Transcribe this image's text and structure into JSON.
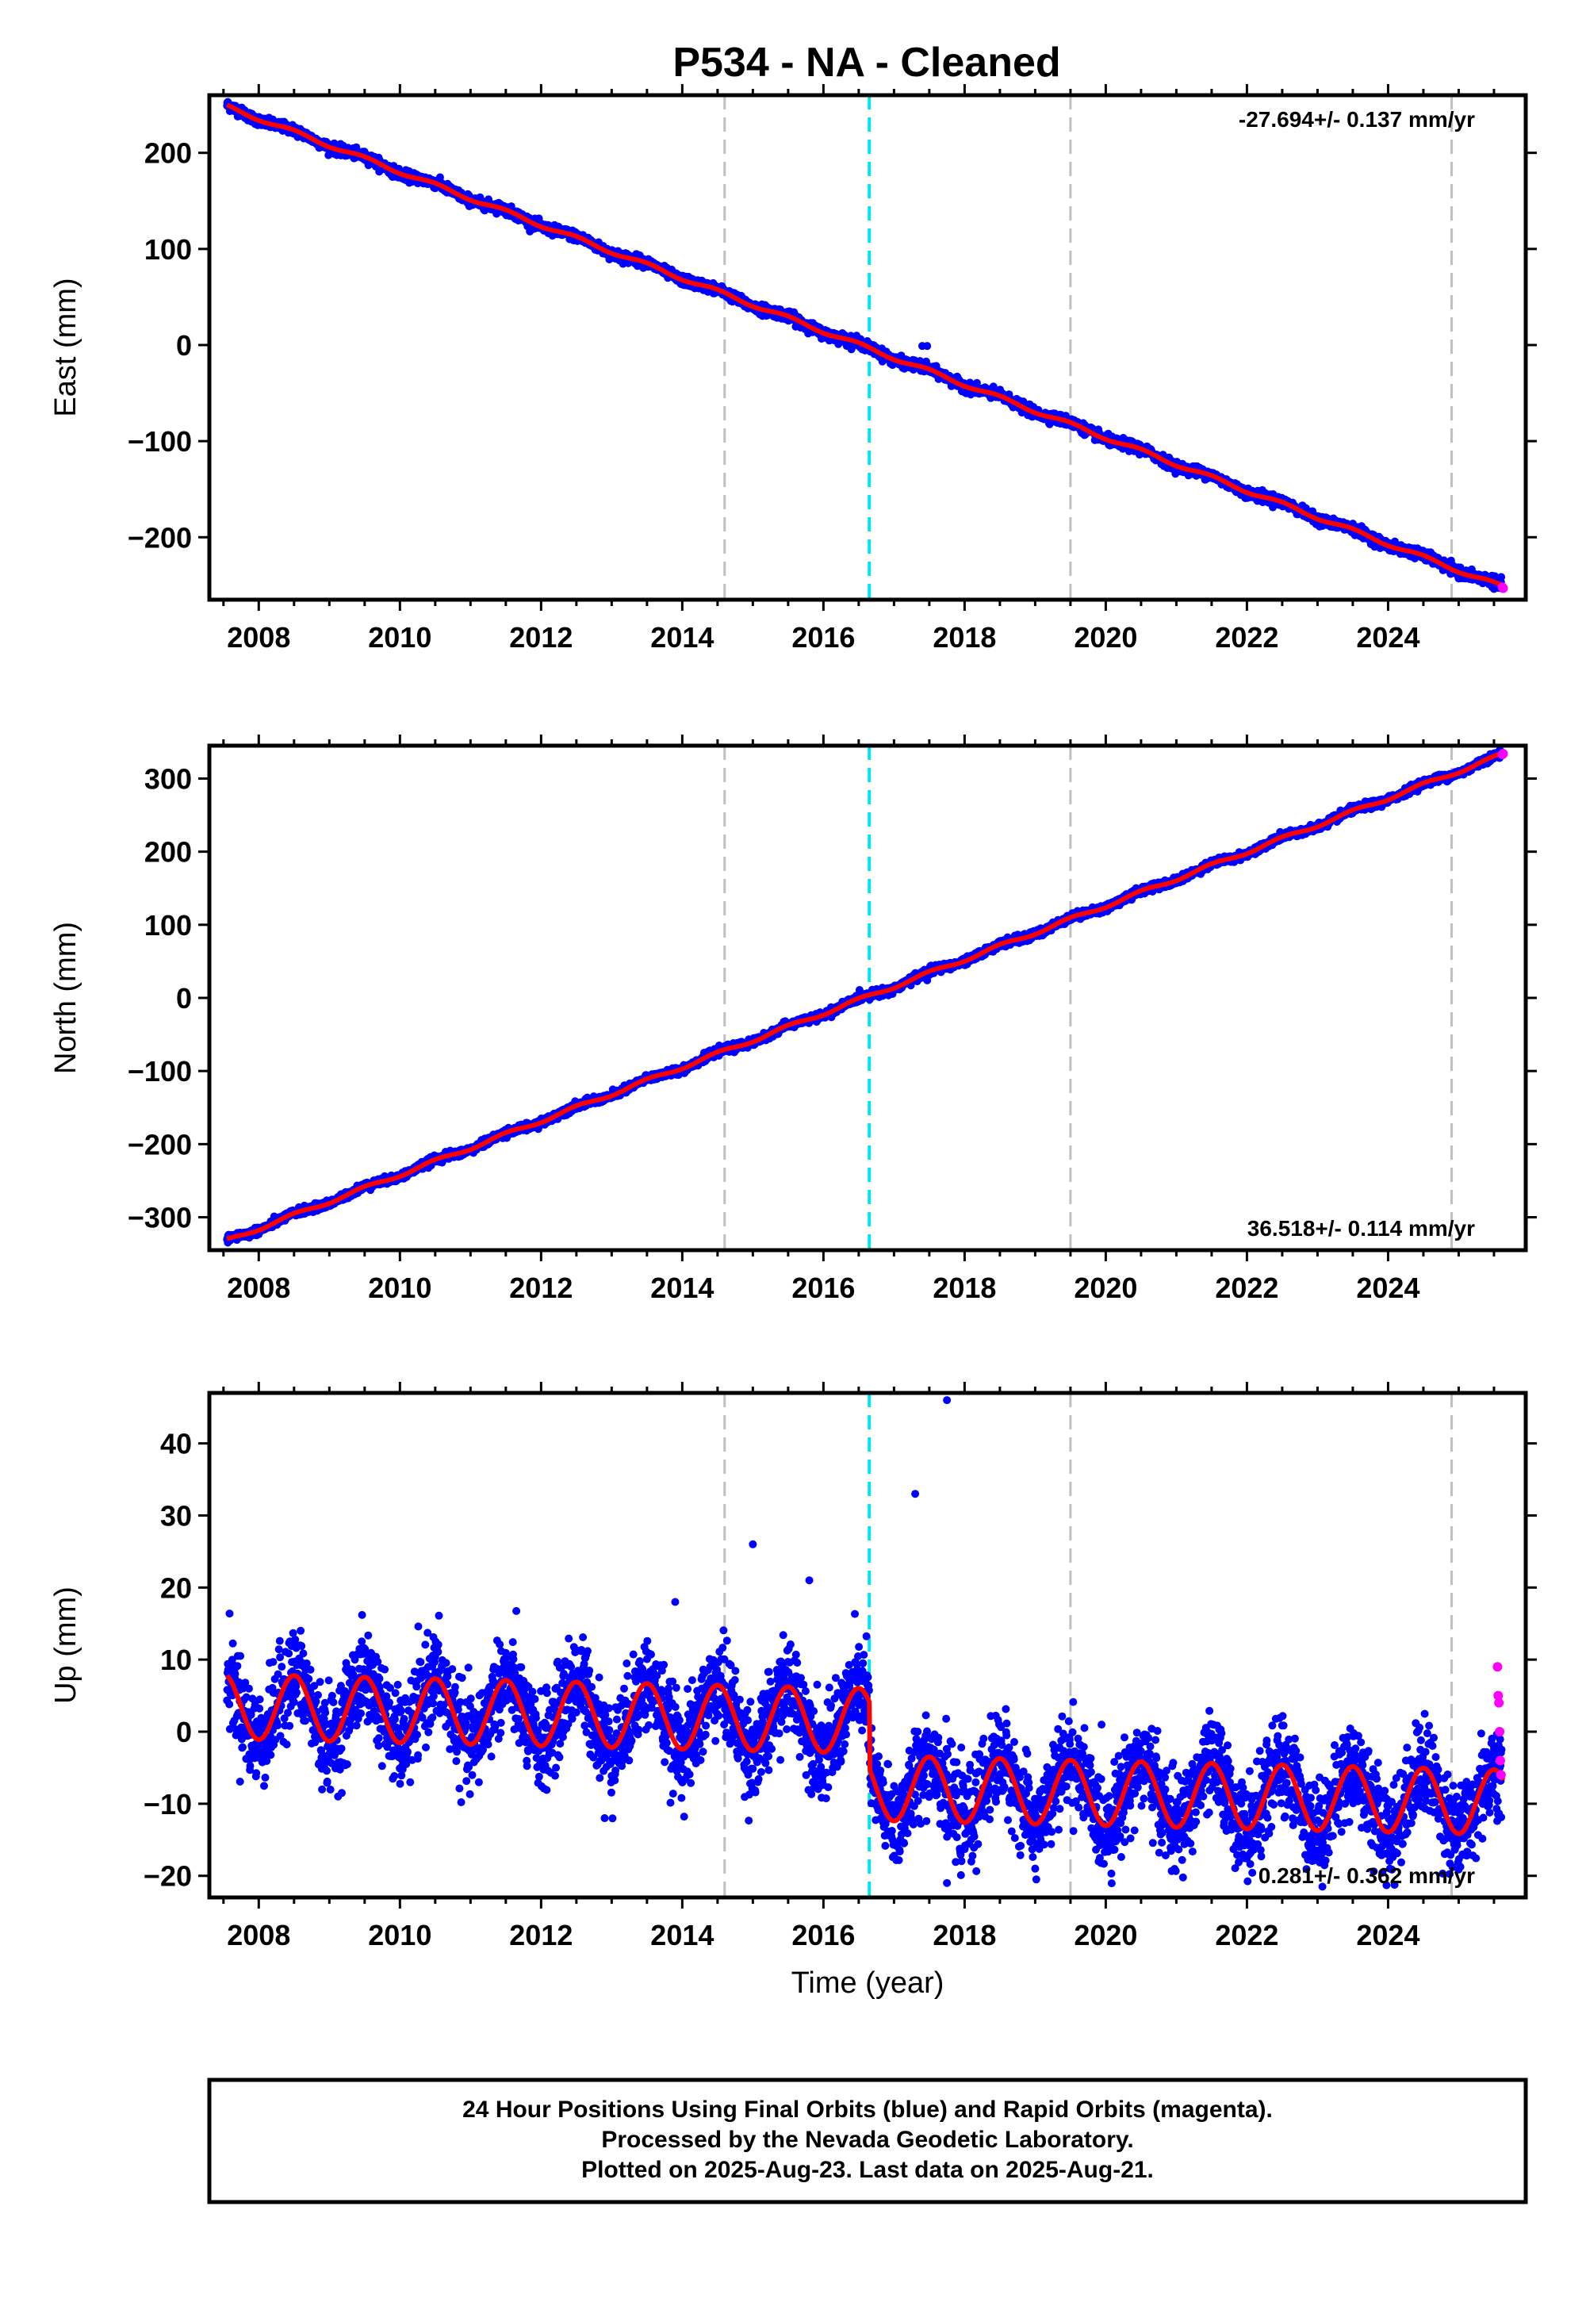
{
  "title": "P534  - NA - Cleaned",
  "footer": {
    "lines": [
      "24 Hour Positions Using Final Orbits (blue) and Rapid Orbits (magenta).",
      "Processed by the Nevada Geodetic Laboratory.",
      "Plotted on 2025-Aug-23. Last data on 2025-Aug-21."
    ]
  },
  "colors": {
    "final_orbits": "#0000ff",
    "rapid_orbits": "#ff00ff",
    "model_fit": "#ff0000",
    "antenna_change": "#00e5ee",
    "equipment_change": "#c0c0c0"
  },
  "chart_data": [
    {
      "type": "scatter",
      "name": "east",
      "ylabel": "East (mm)",
      "xlim": [
        2007.3,
        2025.95
      ],
      "ylim": [
        -265,
        260
      ],
      "xticks": [
        2008,
        2010,
        2012,
        2014,
        2016,
        2018,
        2020,
        2022,
        2024
      ],
      "yticks": [
        -200,
        -100,
        0,
        100,
        200
      ],
      "rate_label": "-27.694+/- 0.137 mm/yr",
      "rate_position": "top-right",
      "start": [
        2007.55,
        248
      ],
      "end": [
        2025.63,
        -252
      ],
      "offsets": [],
      "seasonal_amplitude": 2,
      "scatter": 2.5,
      "outliers": [
        [
          2017.4,
          -1
        ],
        [
          2017.47,
          -1
        ]
      ],
      "rapid_points": [
        [
          2025.62,
          -252
        ],
        [
          2025.63,
          -253
        ]
      ],
      "vlines_dashed_gray": [
        2014.6,
        2019.5,
        2024.9
      ],
      "vlines_dashed_cyan": [
        2016.65
      ]
    },
    {
      "type": "scatter",
      "name": "north",
      "ylabel": "North (mm)",
      "xlim": [
        2007.3,
        2025.95
      ],
      "ylim": [
        -345,
        345
      ],
      "xticks": [
        2008,
        2010,
        2012,
        2014,
        2016,
        2018,
        2020,
        2022,
        2024
      ],
      "yticks": [
        -300,
        -200,
        -100,
        0,
        100,
        200,
        300
      ],
      "rate_label": "36.518+/- 0.114 mm/yr",
      "rate_position": "bottom-right",
      "start": [
        2007.55,
        -332
      ],
      "end": [
        2025.63,
        333
      ],
      "offsets": [],
      "seasonal_amplitude": 2.5,
      "scatter": 2.5,
      "outliers": [
        [
          2017.4,
          28
        ],
        [
          2017.47,
          24
        ]
      ],
      "rapid_points": [
        [
          2025.62,
          333
        ],
        [
          2025.63,
          334
        ]
      ],
      "vlines_dashed_gray": [
        2014.6,
        2019.5,
        2024.9
      ],
      "vlines_dashed_cyan": [
        2016.65
      ]
    },
    {
      "type": "scatter",
      "name": "up",
      "ylabel": "Up (mm)",
      "xlabel": "Time (year)",
      "xlim": [
        2007.3,
        2025.95
      ],
      "ylim": [
        -23,
        47
      ],
      "xticks": [
        2008,
        2010,
        2012,
        2014,
        2016,
        2018,
        2020,
        2022,
        2024
      ],
      "yticks": [
        -20,
        -10,
        0,
        10,
        20,
        30,
        40
      ],
      "rate_label": "0.281+/- 0.362 mm/yr",
      "rate_position": "bottom-right",
      "start": [
        2007.55,
        3.5
      ],
      "end": [
        2025.63,
        -0.5
      ],
      "offsets": [
        [
          2016.65,
          -9.3
        ]
      ],
      "seasonal_amplitude": 4.5,
      "scatter": 3.2,
      "outliers": [
        [
          2015.0,
          26
        ],
        [
          2017.3,
          33
        ],
        [
          2017.75,
          46
        ],
        [
          2013.9,
          18
        ],
        [
          2015.8,
          21
        ],
        [
          2012.9,
          -12
        ],
        [
          2017.75,
          -21
        ],
        [
          2019.0,
          -19
        ]
      ],
      "rapid_points": [
        [
          2025.55,
          9
        ],
        [
          2025.56,
          5
        ],
        [
          2025.57,
          4
        ],
        [
          2025.58,
          0
        ],
        [
          2025.59,
          -4
        ],
        [
          2025.6,
          -6
        ]
      ],
      "vlines_dashed_gray": [
        2014.6,
        2019.5,
        2024.9
      ],
      "vlines_dashed_cyan": [
        2016.65
      ]
    }
  ]
}
